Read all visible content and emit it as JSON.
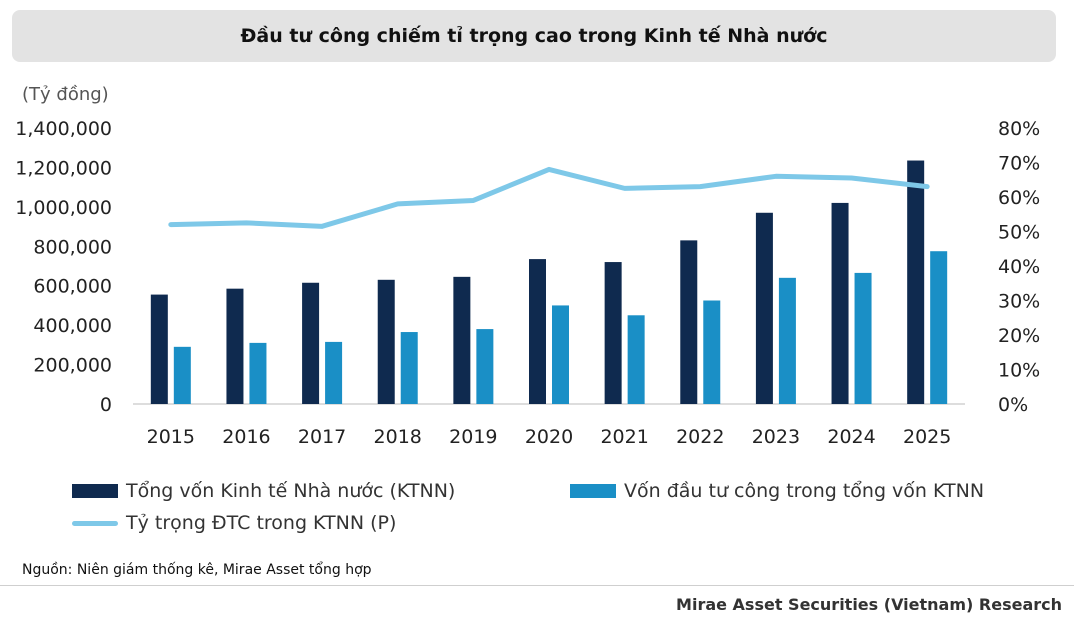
{
  "title": "Đầu tư công chiếm tỉ trọng cao trong Kinh tế Nhà nước",
  "colors": {
    "total_bar": "#0f2a4f",
    "public_bar": "#1a8fc6",
    "share_line": "#7ec8e8"
  },
  "chart_data": {
    "type": "bar",
    "categories": [
      "2015",
      "2016",
      "2017",
      "2018",
      "2019",
      "2020",
      "2021",
      "2022",
      "2023",
      "2024",
      "2025"
    ],
    "unit_label": "(Tỷ đồng)",
    "y_left": {
      "ticks": [
        "1,400,000",
        "1,200,000",
        "1,000,000",
        "800,000",
        "600,000",
        "400,000",
        "200,000",
        "0"
      ],
      "range": [
        0,
        1400000
      ]
    },
    "y_right": {
      "ticks": [
        "80%",
        "70%",
        "60%",
        "50%",
        "40%",
        "30%",
        "20%",
        "10%",
        "0%"
      ],
      "range": [
        0,
        0.8
      ]
    },
    "series": [
      {
        "name": "Tổng vốn Kinh tế Nhà nước (KTNN)",
        "kind": "bar",
        "axis": "left",
        "values": [
          555000,
          585000,
          615000,
          630000,
          645000,
          735000,
          720000,
          830000,
          970000,
          1020000,
          1235000
        ]
      },
      {
        "name": "Vốn đầu tư công trong tổng vốn KTNN",
        "kind": "bar",
        "axis": "left",
        "values": [
          290000,
          310000,
          315000,
          365000,
          380000,
          500000,
          450000,
          525000,
          640000,
          665000,
          775000
        ]
      },
      {
        "name": "Tỷ trọng ĐTC trong KTNN (P)",
        "kind": "line",
        "axis": "right",
        "values": [
          0.52,
          0.525,
          0.515,
          0.58,
          0.59,
          0.68,
          0.625,
          0.63,
          0.66,
          0.655,
          0.63
        ]
      }
    ]
  },
  "source": "Nguồn: Niên giám thống kê, Mirae Asset tổng hợp",
  "footer": "Mirae Asset Securities (Vietnam) Research"
}
